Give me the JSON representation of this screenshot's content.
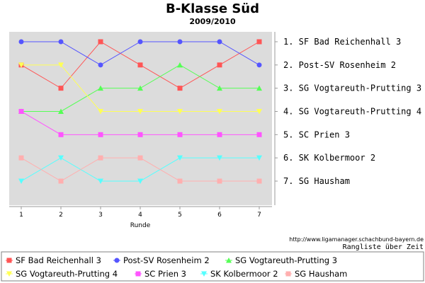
{
  "chart_data": {
    "type": "line",
    "title": "B-Klasse Süd",
    "subtitle": "2009/2010",
    "xlabel": "Runde",
    "ylabel": "",
    "x": [
      1,
      2,
      3,
      4,
      5,
      6,
      7
    ],
    "ylim": [
      1,
      7
    ],
    "y_inverted": true,
    "grid": false,
    "background_color": "#dcdcdc",
    "legend_position": "bottom",
    "rank_labels": [
      "1. SF Bad Reichenhall 3",
      "2. Post-SV Rosenheim 2",
      "3. SG Vogtareuth-Prutting 3",
      "4. SG Vogtareuth-Prutting 4",
      "5. SC Prien 3",
      "6. SK Kolbermoor 2",
      "7. SG Hausham"
    ],
    "series": [
      {
        "name": "SF Bad Reichenhall 3",
        "color": "#ff5555",
        "marker": "square",
        "values": [
          2,
          3,
          1,
          2,
          3,
          2,
          1
        ]
      },
      {
        "name": "Post-SV Rosenheim 2",
        "color": "#5555ff",
        "marker": "circle",
        "values": [
          1,
          1,
          2,
          1,
          1,
          1,
          2
        ]
      },
      {
        "name": "SG Vogtareuth-Prutting 3",
        "color": "#55ff55",
        "marker": "triangle-up",
        "values": [
          4,
          4,
          3,
          3,
          2,
          3,
          3
        ]
      },
      {
        "name": "SG Vogtareuth-Prutting 4",
        "color": "#ffff55",
        "marker": "triangle-down",
        "values": [
          2,
          2,
          4,
          4,
          4,
          4,
          4
        ]
      },
      {
        "name": "SC Prien 3",
        "color": "#ff55ff",
        "marker": "square",
        "values": [
          4,
          5,
          5,
          5,
          5,
          5,
          5
        ]
      },
      {
        "name": "SK Kolbermoor 2",
        "color": "#55ffff",
        "marker": "triangle-down",
        "values": [
          7,
          6,
          7,
          7,
          6,
          6,
          6
        ]
      },
      {
        "name": "SG Hausham",
        "color": "#ffafaf",
        "marker": "square",
        "values": [
          6,
          7,
          6,
          6,
          7,
          7,
          7
        ]
      }
    ]
  },
  "source_url": "http://www.ligamanager.schachbund-bayern.de",
  "caption": "Rangliste über Zeit"
}
